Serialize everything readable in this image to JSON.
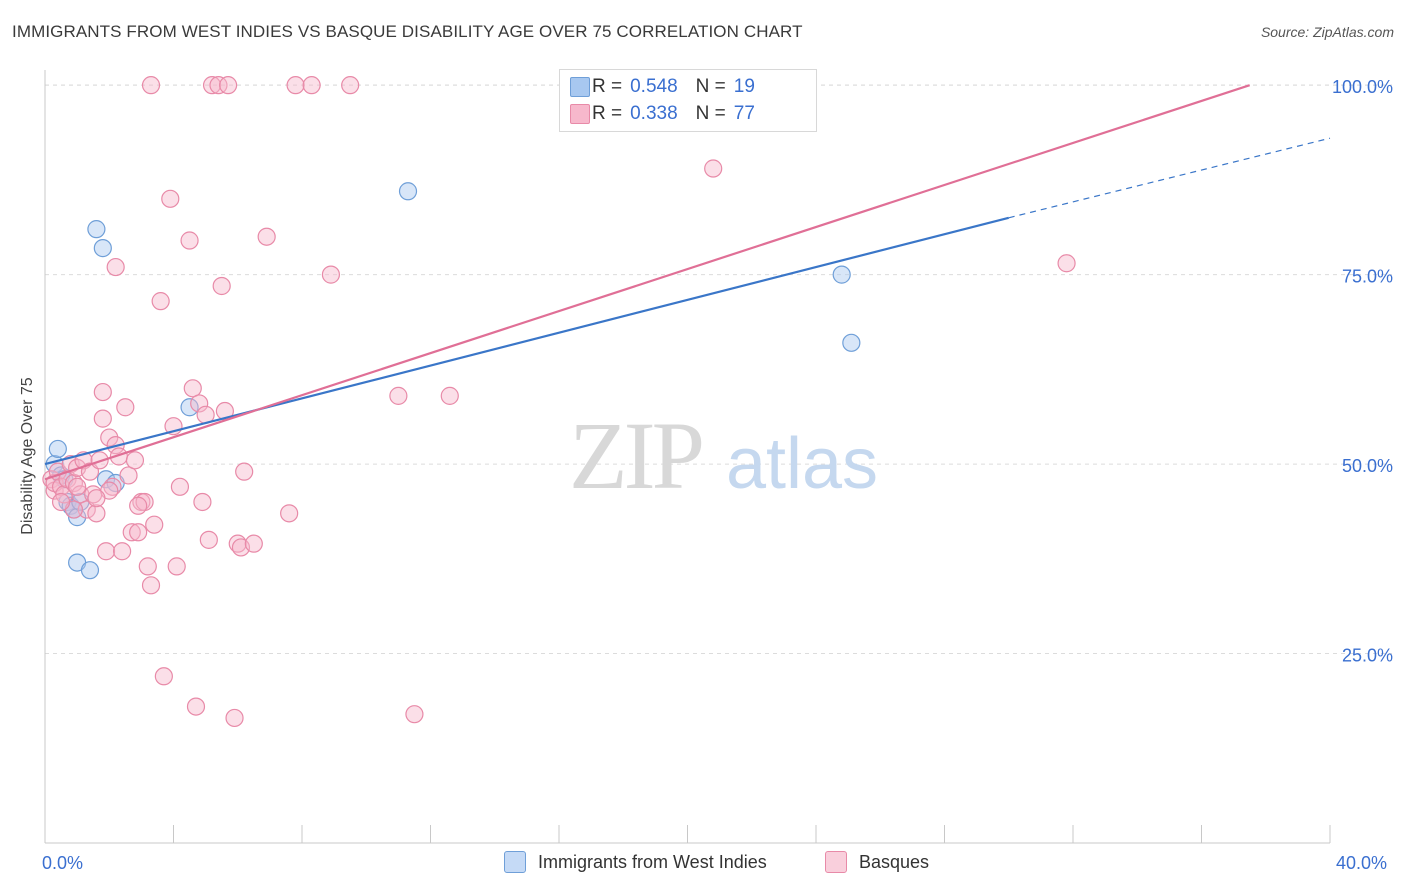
{
  "title": "IMMIGRANTS FROM WEST INDIES VS BASQUE DISABILITY AGE OVER 75 CORRELATION CHART",
  "source": "Source: ZipAtlas.com",
  "watermark": {
    "zip": "ZIP",
    "atlas": "atlas"
  },
  "legend_top": [
    {
      "r_label": "R =",
      "r_value": "0.548",
      "n_label": "N =",
      "n_value": "19",
      "color": "#a8c8f0",
      "border": "#6f9fd8"
    },
    {
      "r_label": "R =",
      "r_value": "0.338",
      "n_label": "N =",
      "n_value": "77",
      "color": "#f7b8cc",
      "border": "#e88aa8"
    }
  ],
  "legend_bottom": [
    {
      "label": "Immigrants from West Indies",
      "color": "#c5daf6",
      "border": "#6f9fd8"
    },
    {
      "label": "Basques",
      "color": "#f9cfdc",
      "border": "#e88aa8"
    }
  ],
  "x_axis": {
    "min_label": "0.0%",
    "max_label": "40.0%"
  },
  "chart_data": {
    "type": "scatter",
    "title": "IMMIGRANTS FROM WEST INDIES VS BASQUE DISABILITY AGE OVER 75 CORRELATION CHART",
    "xlabel": "",
    "ylabel": "Disability Age Over 75",
    "xlim": [
      0,
      40
    ],
    "ylim": [
      0,
      102
    ],
    "y_ticks": [
      25,
      50,
      75,
      100
    ],
    "y_tick_labels": [
      "25.0%",
      "50.0%",
      "75.0%",
      "100.0%"
    ],
    "grid": true,
    "series": [
      {
        "name": "Immigrants from West Indies",
        "color": "#6f9fd8",
        "fill": "#a8c8f0",
        "line_color": "#3a76c8",
        "trend": {
          "x0": 0,
          "y0": 50.0,
          "x1": 30.0,
          "y1": 82.5,
          "dash_to_x": 40,
          "dash_to_y": 93.0
        },
        "points": [
          [
            0.3,
            50.0
          ],
          [
            0.4,
            52.0
          ],
          [
            0.5,
            48.5
          ],
          [
            0.6,
            48.0
          ],
          [
            0.7,
            45.0
          ],
          [
            0.8,
            44.5
          ],
          [
            0.9,
            44.0
          ],
          [
            1.0,
            37.0
          ],
          [
            1.0,
            43.0
          ],
          [
            1.4,
            36.0
          ],
          [
            1.6,
            81.0
          ],
          [
            1.8,
            78.5
          ],
          [
            1.9,
            48.0
          ],
          [
            2.2,
            47.5
          ],
          [
            4.5,
            57.5
          ],
          [
            11.3,
            86.0
          ],
          [
            24.8,
            75.0
          ],
          [
            25.1,
            66.0
          ],
          [
            1.1,
            45.0
          ]
        ]
      },
      {
        "name": "Basques",
        "color": "#e88aa8",
        "fill": "#f7b8cc",
        "line_color": "#e06f96",
        "trend": {
          "x0": 0,
          "y0": 48.0,
          "x1": 37.5,
          "y1": 100.0
        },
        "points": [
          [
            0.2,
            48.0
          ],
          [
            0.3,
            46.5
          ],
          [
            0.3,
            47.5
          ],
          [
            0.4,
            49.0
          ],
          [
            0.5,
            47.0
          ],
          [
            0.6,
            46.0
          ],
          [
            0.7,
            48.0
          ],
          [
            0.8,
            50.0
          ],
          [
            0.9,
            47.5
          ],
          [
            1.0,
            49.5
          ],
          [
            1.1,
            46.0
          ],
          [
            1.2,
            50.5
          ],
          [
            1.3,
            44.0
          ],
          [
            1.4,
            49.0
          ],
          [
            1.5,
            46.0
          ],
          [
            1.6,
            43.5
          ],
          [
            1.7,
            50.5
          ],
          [
            1.8,
            56.0
          ],
          [
            1.8,
            59.5
          ],
          [
            1.9,
            38.5
          ],
          [
            2.0,
            53.5
          ],
          [
            2.1,
            47.0
          ],
          [
            2.2,
            52.5
          ],
          [
            2.3,
            51.0
          ],
          [
            2.4,
            38.5
          ],
          [
            2.2,
            76.0
          ],
          [
            2.5,
            57.5
          ],
          [
            2.6,
            48.5
          ],
          [
            2.7,
            41.0
          ],
          [
            2.8,
            50.5
          ],
          [
            2.9,
            41.0
          ],
          [
            3.0,
            45.0
          ],
          [
            3.1,
            45.0
          ],
          [
            3.2,
            36.5
          ],
          [
            3.3,
            100.0
          ],
          [
            3.3,
            34.0
          ],
          [
            3.4,
            42.0
          ],
          [
            3.6,
            71.5
          ],
          [
            3.7,
            22.0
          ],
          [
            3.9,
            85.0
          ],
          [
            4.0,
            55.0
          ],
          [
            4.1,
            36.5
          ],
          [
            4.2,
            47.0
          ],
          [
            4.5,
            79.5
          ],
          [
            4.6,
            60.0
          ],
          [
            4.7,
            18.0
          ],
          [
            4.8,
            58.0
          ],
          [
            4.9,
            45.0
          ],
          [
            5.0,
            56.5
          ],
          [
            5.1,
            40.0
          ],
          [
            5.2,
            100.0
          ],
          [
            5.4,
            100.0
          ],
          [
            5.5,
            73.5
          ],
          [
            5.6,
            57.0
          ],
          [
            5.7,
            100.0
          ],
          [
            5.9,
            16.5
          ],
          [
            6.0,
            39.5
          ],
          [
            6.1,
            39.0
          ],
          [
            6.2,
            49.0
          ],
          [
            6.5,
            39.5
          ],
          [
            6.9,
            80.0
          ],
          [
            7.6,
            43.5
          ],
          [
            7.8,
            100.0
          ],
          [
            8.3,
            100.0
          ],
          [
            8.9,
            75.0
          ],
          [
            9.5,
            100.0
          ],
          [
            11.0,
            59.0
          ],
          [
            11.5,
            17.0
          ],
          [
            12.6,
            59.0
          ],
          [
            20.8,
            89.0
          ],
          [
            31.8,
            76.5
          ],
          [
            1.0,
            47.0
          ],
          [
            0.9,
            44.0
          ],
          [
            2.0,
            46.5
          ],
          [
            2.9,
            44.5
          ],
          [
            1.6,
            45.5
          ],
          [
            0.5,
            45.0
          ]
        ]
      }
    ]
  }
}
